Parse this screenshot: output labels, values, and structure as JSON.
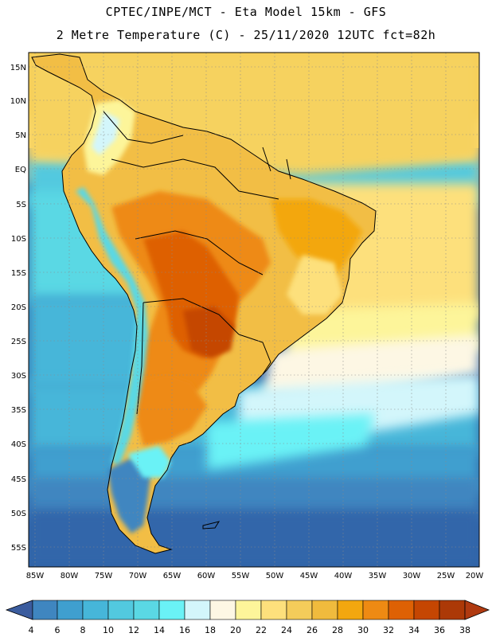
{
  "header": {
    "title_line1": "CPTEC/INPE/MCT -  Eta Model 15km - GFS",
    "title_line2": "2 Metre Temperature (C) - 25/11/2020 12UTC fct=82h"
  },
  "map": {
    "lat_ticks": [
      "15N",
      "10N",
      "5N",
      "EQ",
      "5S",
      "10S",
      "15S",
      "20S",
      "25S",
      "30S",
      "35S",
      "40S",
      "45S",
      "50S",
      "55S"
    ],
    "lon_ticks": [
      "85W",
      "80W",
      "75W",
      "70W",
      "65W",
      "60W",
      "55W",
      "50W",
      "45W",
      "40W",
      "35W",
      "30W",
      "25W",
      "20W"
    ],
    "lat_range": [
      17,
      -57
    ],
    "lon_range": [
      -86,
      -20
    ]
  },
  "colorbar": {
    "labels": [
      "4",
      "6",
      "8",
      "10",
      "12",
      "14",
      "16",
      "18",
      "20",
      "22",
      "24",
      "26",
      "28",
      "30",
      "32",
      "34",
      "36",
      "38"
    ],
    "colors": [
      "#3a6cae",
      "#3f86c0",
      "#3f9fcf",
      "#46b6d9",
      "#52c9df",
      "#5ad8e4",
      "#6af2f6",
      "#d3f6fb",
      "#fdf7e4",
      "#fdf59a",
      "#fde07c",
      "#f4cc5a",
      "#f0bb3d",
      "#f3a70f",
      "#ee8a13",
      "#de6104",
      "#c54602",
      "#ac3907"
    ],
    "lo_color": "#3b5c9e",
    "hi_color": "#b03a10"
  }
}
